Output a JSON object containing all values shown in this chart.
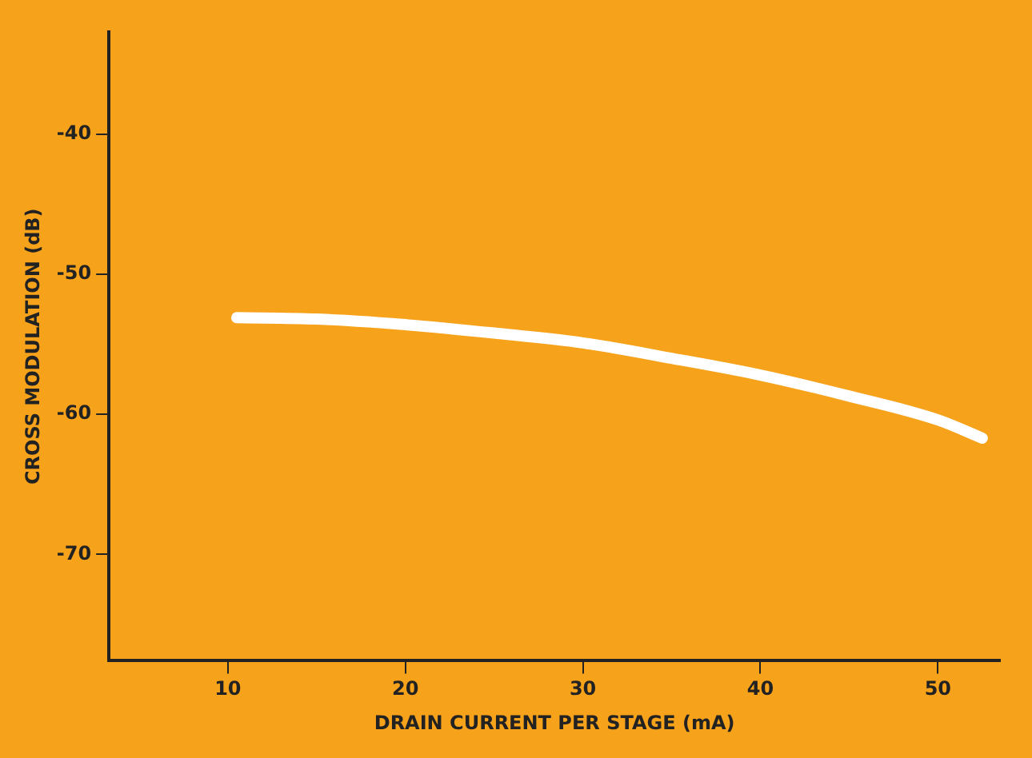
{
  "chart_data": {
    "type": "line",
    "xlabel": "DRAIN CURRENT PER STAGE (mA)",
    "ylabel": "CROSS MODULATION (dB)",
    "x": [
      10.5,
      15,
      20,
      25,
      30,
      35,
      40,
      45,
      50,
      52.5
    ],
    "series": [
      {
        "color": "#ffffff",
        "values": [
          -53.1,
          -53.2,
          -53.6,
          -54.2,
          -54.9,
          -56,
          -57.2,
          -58.7,
          -60.4,
          -61.7
        ]
      }
    ],
    "xlim": [
      3.3,
      53.5
    ],
    "xticks": [
      10,
      20,
      30,
      40,
      50
    ],
    "ylim": [
      -77.6,
      -32.7
    ],
    "yticks": [
      -40,
      -50,
      -60,
      -70
    ],
    "grid": false,
    "legend": false,
    "marker": "none",
    "line_style": "solid"
  }
}
